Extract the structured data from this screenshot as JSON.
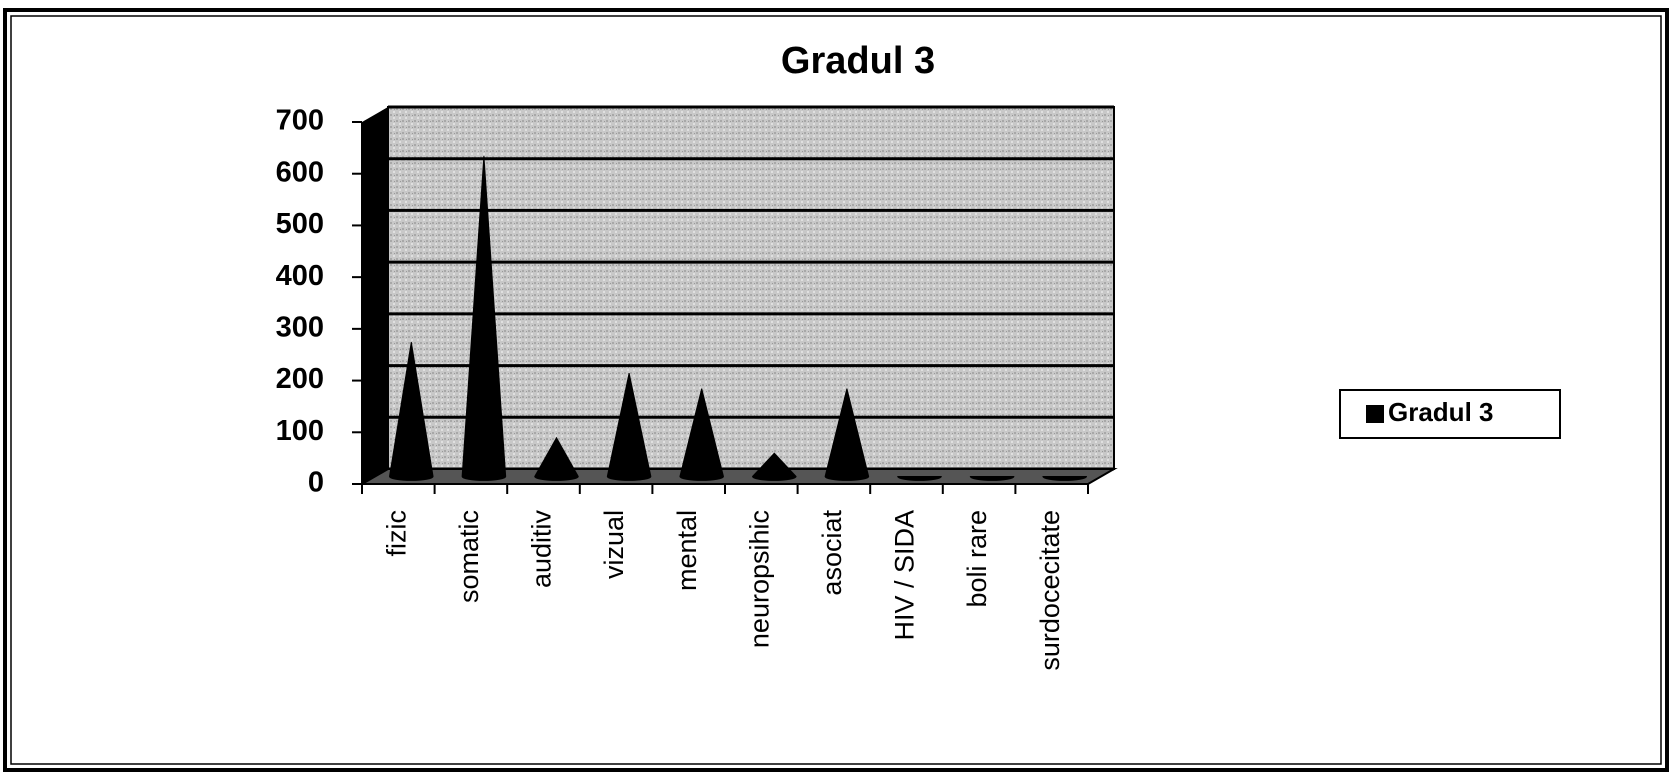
{
  "chart_data": {
    "type": "cone",
    "title": "Gradul 3",
    "categories": [
      "fizic",
      "somatic",
      "auditiv",
      "vizual",
      "mental",
      "neuropsihic",
      "asociat",
      "HIV / SIDA",
      "boli rare",
      "surdocecitate"
    ],
    "series": [
      {
        "name": "Gradul 3",
        "color": "#000000",
        "values": [
          260,
          620,
          75,
          200,
          170,
          45,
          170,
          0,
          0,
          0
        ]
      }
    ],
    "ylim": [
      0,
      700
    ],
    "yticks": [
      0,
      100,
      200,
      300,
      400,
      500,
      600,
      700
    ],
    "grid": true,
    "legend": "right"
  }
}
